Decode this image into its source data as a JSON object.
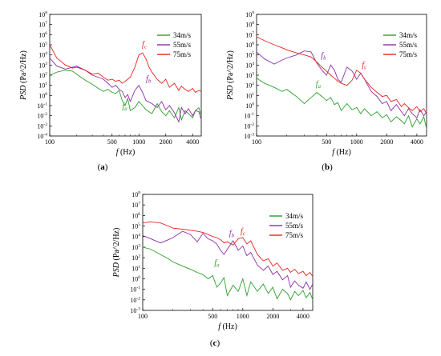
{
  "chart_data": [
    {
      "id": "a",
      "type": "line",
      "caption": "(a)",
      "xlabel": "f (Hz)",
      "ylabel": "PSD (Pa^2/Hz)",
      "xscale": "log",
      "yscale": "log",
      "xlim": [
        100,
        5000
      ],
      "ylim_exp": [
        -4,
        8
      ],
      "xticks": [
        100,
        500,
        1000,
        2000,
        4000
      ],
      "legend_position": "top-right",
      "series": [
        {
          "name": "34m/s",
          "color": "#2ca02c",
          "x": [
            100,
            120,
            150,
            180,
            200,
            250,
            300,
            350,
            400,
            450,
            500,
            550,
            600,
            650,
            700,
            750,
            800,
            900,
            1000,
            1100,
            1200,
            1400,
            1600,
            1800,
            2000,
            2200,
            2500,
            2800,
            3000,
            3300,
            3600,
            4000,
            4300,
            4700,
            5000
          ],
          "y": [
            2.0,
            2.3,
            2.5,
            2.4,
            2.1,
            1.5,
            1.1,
            0.7,
            0.4,
            0.6,
            0.3,
            0.2,
            0.5,
            -0.5,
            -1.0,
            -0.3,
            -1.5,
            -1.2,
            -0.6,
            -1.0,
            -1.4,
            -1.8,
            -0.8,
            -1.6,
            -2.0,
            -1.5,
            -2.2,
            -1.2,
            -2.4,
            -1.5,
            -1.8,
            -2.2,
            -1.5,
            -1.2,
            -2.0
          ]
        },
        {
          "name": "55m/s",
          "color": "#8b2fa6",
          "x": [
            100,
            120,
            150,
            180,
            200,
            250,
            300,
            350,
            400,
            450,
            500,
            550,
            600,
            650,
            700,
            750,
            800,
            900,
            1000,
            1100,
            1200,
            1400,
            1600,
            1800,
            2000,
            2200,
            2500,
            2800,
            3000,
            3300,
            3600,
            4000,
            4300,
            4700,
            5000
          ],
          "y": [
            3.7,
            2.9,
            2.6,
            2.8,
            2.9,
            2.5,
            2.0,
            1.8,
            1.6,
            1.2,
            0.8,
            1.0,
            0.6,
            0.4,
            -0.2,
            0.1,
            -0.6,
            0.5,
            1.0,
            0.3,
            -0.5,
            -0.8,
            -1.2,
            -0.6,
            -1.4,
            -1.0,
            -1.7,
            -2.6,
            -1.2,
            -1.8,
            -1.3,
            -2.0,
            -1.5,
            -1.6,
            -2.4
          ]
        },
        {
          "name": "75m/s",
          "color": "#e8241f",
          "x": [
            100,
            120,
            150,
            180,
            200,
            250,
            300,
            350,
            400,
            450,
            500,
            550,
            600,
            650,
            700,
            750,
            800,
            900,
            1000,
            1100,
            1200,
            1300,
            1400,
            1600,
            1800,
            2000,
            2200,
            2500,
            2800,
            3000,
            3300,
            3600,
            4000,
            4300,
            4700,
            5000
          ],
          "y": [
            5.0,
            3.7,
            3.0,
            2.7,
            2.8,
            2.5,
            2.1,
            2.2,
            1.8,
            1.5,
            1.6,
            1.4,
            1.5,
            1.2,
            1.4,
            1.6,
            1.8,
            2.8,
            4.0,
            4.2,
            3.6,
            2.8,
            2.3,
            1.6,
            1.2,
            1.6,
            0.8,
            1.2,
            0.5,
            0.9,
            0.6,
            0.4,
            0.7,
            0.3,
            0.5,
            0.4
          ]
        }
      ],
      "annotations": [
        {
          "label": "f",
          "sub": "c",
          "color": "#e8241f",
          "x": 1080,
          "y": 4.8
        },
        {
          "label": "f",
          "sub": "b",
          "color": "#8b2fa6",
          "x": 1200,
          "y": 1.4
        },
        {
          "label": "f",
          "sub": "a",
          "color": "#2ca02c",
          "x": 650,
          "y": -1.3
        }
      ]
    },
    {
      "id": "b",
      "type": "line",
      "caption": "(b)",
      "xlabel": "f (Hz)",
      "ylabel": "PSD (Pa^2/Hz)",
      "xscale": "log",
      "yscale": "log",
      "xlim": [
        100,
        5000
      ],
      "ylim_exp": [
        -3,
        9
      ],
      "xticks": [
        100,
        500,
        1000,
        2000,
        4000
      ],
      "legend_position": "top-right",
      "series": [
        {
          "name": "34m/s",
          "color": "#2ca02c",
          "x": [
            100,
            120,
            150,
            180,
            200,
            250,
            300,
            350,
            400,
            450,
            500,
            550,
            600,
            650,
            700,
            800,
            900,
            1000,
            1100,
            1200,
            1400,
            1600,
            1800,
            2000,
            2200,
            2500,
            2800,
            3000,
            3300,
            3600,
            4000,
            4300,
            4700,
            5000
          ],
          "y": [
            2.7,
            2.2,
            1.8,
            1.4,
            1.6,
            0.9,
            0.2,
            0.8,
            1.3,
            0.9,
            0.5,
            0.8,
            0.1,
            0.3,
            -0.5,
            0.2,
            -0.4,
            -0.2,
            -0.8,
            -0.3,
            -1.0,
            -0.6,
            -1.2,
            -0.9,
            -1.6,
            -1.1,
            -1.5,
            -1.8,
            -1.0,
            -2.1,
            -1.3,
            -1.8,
            -1.1,
            -2.3
          ]
        },
        {
          "name": "55m/s",
          "color": "#8b2fa6",
          "x": [
            100,
            120,
            150,
            180,
            200,
            250,
            300,
            350,
            400,
            450,
            500,
            550,
            600,
            650,
            700,
            800,
            900,
            1000,
            1100,
            1200,
            1400,
            1600,
            1800,
            2000,
            2200,
            2500,
            2800,
            3000,
            3300,
            3600,
            4000,
            4300,
            4700,
            5000
          ],
          "y": [
            5.3,
            4.6,
            4.1,
            4.5,
            4.7,
            5.0,
            5.4,
            5.3,
            4.2,
            3.5,
            3.0,
            4.0,
            3.5,
            2.6,
            2.3,
            3.8,
            3.4,
            2.6,
            3.2,
            2.6,
            1.4,
            0.9,
            0.2,
            0.4,
            -0.5,
            0.1,
            -0.6,
            -1.0,
            -0.3,
            -0.8,
            -1.2,
            -0.4,
            -1.0,
            -0.6
          ]
        },
        {
          "name": "75m/s",
          "color": "#e8241f",
          "x": [
            100,
            120,
            150,
            180,
            200,
            250,
            300,
            350,
            400,
            450,
            500,
            550,
            600,
            650,
            700,
            800,
            900,
            1000,
            1100,
            1200,
            1400,
            1600,
            1800,
            2000,
            2200,
            2500,
            2800,
            3000,
            3300,
            3600,
            4000,
            4300,
            4700,
            5000
          ],
          "y": [
            6.8,
            6.4,
            6.0,
            5.7,
            5.5,
            5.2,
            5.0,
            4.8,
            4.3,
            3.8,
            3.4,
            3.0,
            2.7,
            2.4,
            2.2,
            2.0,
            2.5,
            3.5,
            3.2,
            2.6,
            1.8,
            1.3,
            0.9,
            1.0,
            0.4,
            0.6,
            -0.1,
            0.2,
            -0.2,
            -0.5,
            -0.1,
            -0.6,
            -0.3,
            -0.8
          ]
        }
      ],
      "annotations": [
        {
          "label": "f",
          "sub": "b",
          "color": "#8b2fa6",
          "x": 440,
          "y": 4.7
        },
        {
          "label": "f",
          "sub": "c",
          "color": "#e8241f",
          "x": 1130,
          "y": 3.8
        },
        {
          "label": "f",
          "sub": "a",
          "color": "#2ca02c",
          "x": 390,
          "y": 1.9
        }
      ]
    },
    {
      "id": "c",
      "type": "line",
      "caption": "(c)",
      "xlabel": "f (Hz)",
      "ylabel": "PSD (Pa^2/Hz)",
      "xscale": "log",
      "yscale": "log",
      "xlim": [
        100,
        5000
      ],
      "ylim_exp": [
        -3,
        8
      ],
      "xticks": [
        100,
        500,
        1000,
        2000,
        4000
      ],
      "legend_position": "top-right",
      "series": [
        {
          "name": "34m/s",
          "color": "#2ca02c",
          "x": [
            100,
            120,
            150,
            180,
            200,
            250,
            300,
            350,
            400,
            450,
            500,
            550,
            600,
            650,
            700,
            800,
            900,
            1000,
            1100,
            1200,
            1400,
            1600,
            1800,
            2000,
            2200,
            2500,
            2800,
            3000,
            3300,
            3600,
            4000,
            4300,
            4700,
            5000
          ],
          "y": [
            3.0,
            2.8,
            2.3,
            1.9,
            1.6,
            1.2,
            0.9,
            0.6,
            0.4,
            0.0,
            0.3,
            -0.8,
            -0.4,
            0.1,
            -1.6,
            -0.6,
            -1.2,
            0.0,
            -1.6,
            -0.3,
            -1.2,
            -0.5,
            -1.4,
            -0.8,
            -1.9,
            -1.0,
            -1.4,
            -2.0,
            -1.2,
            -1.6,
            -1.1,
            -1.8,
            -1.3,
            -2.0
          ]
        },
        {
          "name": "55m/s",
          "color": "#8b2fa6",
          "x": [
            100,
            120,
            150,
            180,
            200,
            250,
            300,
            350,
            400,
            450,
            500,
            550,
            600,
            650,
            700,
            800,
            900,
            1000,
            1100,
            1200,
            1400,
            1600,
            1800,
            2000,
            2200,
            2500,
            2800,
            3000,
            3300,
            3600,
            4000,
            4300,
            4700,
            5000
          ],
          "y": [
            4.1,
            3.8,
            3.4,
            3.7,
            3.9,
            4.5,
            4.2,
            3.5,
            4.3,
            3.8,
            3.6,
            3.3,
            2.7,
            2.3,
            2.8,
            3.6,
            2.7,
            3.1,
            2.2,
            2.5,
            1.3,
            0.8,
            1.2,
            0.4,
            0.7,
            -0.1,
            0.3,
            -0.8,
            -0.2,
            -0.6,
            -0.9,
            -0.3,
            -1.0,
            -0.5
          ]
        },
        {
          "name": "75m/s",
          "color": "#e8241f",
          "x": [
            100,
            120,
            150,
            180,
            200,
            250,
            300,
            350,
            400,
            450,
            500,
            550,
            600,
            650,
            700,
            800,
            900,
            1000,
            1100,
            1200,
            1400,
            1600,
            1800,
            2000,
            2200,
            2500,
            2800,
            3000,
            3300,
            3600,
            4000,
            4300,
            4700,
            5000
          ],
          "y": [
            5.3,
            5.4,
            5.3,
            5.0,
            4.8,
            4.7,
            4.6,
            4.5,
            4.4,
            4.2,
            4.0,
            3.9,
            3.7,
            3.4,
            3.5,
            3.2,
            3.8,
            3.9,
            3.3,
            3.6,
            2.3,
            1.7,
            1.9,
            1.2,
            1.5,
            0.8,
            1.0,
            0.6,
            0.9,
            0.5,
            0.7,
            0.3,
            0.6,
            0.2
          ]
        }
      ],
      "annotations": [
        {
          "label": "f",
          "sub": "b",
          "color": "#8b2fa6",
          "x": 730,
          "y": 4.1
        },
        {
          "label": "f",
          "sub": "c",
          "color": "#e8241f",
          "x": 950,
          "y": 4.3
        },
        {
          "label": "f",
          "sub": "a",
          "color": "#2ca02c",
          "x": 520,
          "y": 1.3
        }
      ]
    }
  ]
}
